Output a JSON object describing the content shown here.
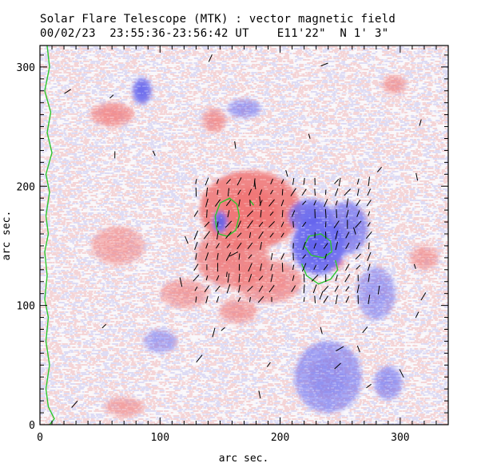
{
  "header": {
    "title_line1": "Solar Flare Telescope (MTK) : vector magnetic field",
    "title_line2": "00/02/23  23:55:36-23:56:42 UT    E11'22\"  N 1' 3\""
  },
  "colors": {
    "positive": "#f08080",
    "negative": "#6f6ff0",
    "contour": "#2ec62e",
    "vector": "#000000",
    "frame": "#000000"
  },
  "chart_data": {
    "type": "heatmap",
    "title": "Solar Flare Telescope (MTK) : vector magnetic field",
    "subtitle": "00/02/23  23:55:36-23:56:42 UT    E11'22\"  N 1' 3\"",
    "xlabel": "arc sec.",
    "ylabel": "arc sec.",
    "xlim": [
      0,
      340
    ],
    "ylim": [
      0,
      318
    ],
    "xticks": [
      0,
      100,
      200,
      300
    ],
    "yticks": [
      0,
      100,
      200,
      300
    ],
    "x_minor_step": 10,
    "y_minor_step": 10,
    "polarity_regions": [
      {
        "polarity": "positive",
        "x": 175,
        "y": 180,
        "rx": 42,
        "ry": 33,
        "strength": 1.0
      },
      {
        "polarity": "positive",
        "x": 160,
        "y": 140,
        "rx": 30,
        "ry": 25,
        "strength": 0.7
      },
      {
        "polarity": "positive",
        "x": 190,
        "y": 120,
        "rx": 28,
        "ry": 18,
        "strength": 0.55
      },
      {
        "polarity": "positive",
        "x": 60,
        "y": 260,
        "rx": 18,
        "ry": 10,
        "strength": 0.55
      },
      {
        "polarity": "positive",
        "x": 145,
        "y": 255,
        "rx": 10,
        "ry": 10,
        "strength": 0.5
      },
      {
        "polarity": "positive",
        "x": 245,
        "y": 135,
        "rx": 8,
        "ry": 5,
        "strength": 0.8
      },
      {
        "polarity": "positive",
        "x": 120,
        "y": 110,
        "rx": 20,
        "ry": 12,
        "strength": 0.35
      },
      {
        "polarity": "positive",
        "x": 65,
        "y": 150,
        "rx": 22,
        "ry": 16,
        "strength": 0.3
      },
      {
        "polarity": "positive",
        "x": 165,
        "y": 95,
        "rx": 16,
        "ry": 10,
        "strength": 0.4
      },
      {
        "polarity": "positive",
        "x": 320,
        "y": 140,
        "rx": 12,
        "ry": 10,
        "strength": 0.35
      },
      {
        "polarity": "positive",
        "x": 295,
        "y": 285,
        "rx": 10,
        "ry": 8,
        "strength": 0.35
      },
      {
        "polarity": "positive",
        "x": 70,
        "y": 15,
        "rx": 16,
        "ry": 8,
        "strength": 0.3
      },
      {
        "polarity": "negative",
        "x": 232,
        "y": 150,
        "rx": 22,
        "ry": 24,
        "strength": 1.0
      },
      {
        "polarity": "negative",
        "x": 225,
        "y": 175,
        "rx": 18,
        "ry": 14,
        "strength": 0.8
      },
      {
        "polarity": "negative",
        "x": 255,
        "y": 165,
        "rx": 18,
        "ry": 22,
        "strength": 0.6
      },
      {
        "polarity": "negative",
        "x": 150,
        "y": 170,
        "rx": 6,
        "ry": 9,
        "strength": 0.9
      },
      {
        "polarity": "negative",
        "x": 85,
        "y": 280,
        "rx": 8,
        "ry": 11,
        "strength": 0.85
      },
      {
        "polarity": "negative",
        "x": 240,
        "y": 40,
        "rx": 28,
        "ry": 30,
        "strength": 0.4
      },
      {
        "polarity": "negative",
        "x": 280,
        "y": 110,
        "rx": 16,
        "ry": 22,
        "strength": 0.3
      },
      {
        "polarity": "negative",
        "x": 170,
        "y": 265,
        "rx": 14,
        "ry": 8,
        "strength": 0.3
      },
      {
        "polarity": "negative",
        "x": 290,
        "y": 35,
        "rx": 12,
        "ry": 14,
        "strength": 0.35
      },
      {
        "polarity": "negative",
        "x": 100,
        "y": 70,
        "rx": 14,
        "ry": 10,
        "strength": 0.2
      }
    ],
    "contours": [
      [
        [
          147,
          165
        ],
        [
          146,
          175
        ],
        [
          150,
          186
        ],
        [
          158,
          190
        ],
        [
          164,
          185
        ],
        [
          166,
          175
        ],
        [
          163,
          163
        ],
        [
          156,
          158
        ],
        [
          149,
          160
        ],
        [
          147,
          165
        ]
      ],
      [
        [
          220,
          150
        ],
        [
          224,
          158
        ],
        [
          234,
          160
        ],
        [
          242,
          154
        ],
        [
          243,
          145
        ],
        [
          236,
          140
        ],
        [
          226,
          142
        ],
        [
          220,
          150
        ]
      ],
      [
        [
          218,
          135
        ],
        [
          222,
          125
        ],
        [
          232,
          118
        ],
        [
          242,
          122
        ],
        [
          248,
          130
        ],
        [
          246,
          138
        ]
      ],
      [
        [
          175,
          188
        ],
        [
          178,
          184
        ]
      ],
      [
        [
          6,
          318
        ],
        [
          8,
          300
        ],
        [
          4,
          280
        ],
        [
          9,
          262
        ],
        [
          6,
          245
        ],
        [
          10,
          228
        ],
        [
          5,
          210
        ],
        [
          8,
          195
        ],
        [
          5,
          175
        ],
        [
          7,
          160
        ],
        [
          4,
          145
        ],
        [
          6,
          125
        ],
        [
          4,
          105
        ],
        [
          7,
          90
        ],
        [
          5,
          70
        ],
        [
          8,
          50
        ],
        [
          5,
          30
        ],
        [
          7,
          15
        ],
        [
          12,
          5
        ],
        [
          8,
          0
        ]
      ]
    ],
    "vector_field": {
      "x_range": [
        130,
        275
      ],
      "y_range": [
        105,
        205
      ],
      "step": 9,
      "mean_angle_deg": 110,
      "length": 10
    }
  }
}
